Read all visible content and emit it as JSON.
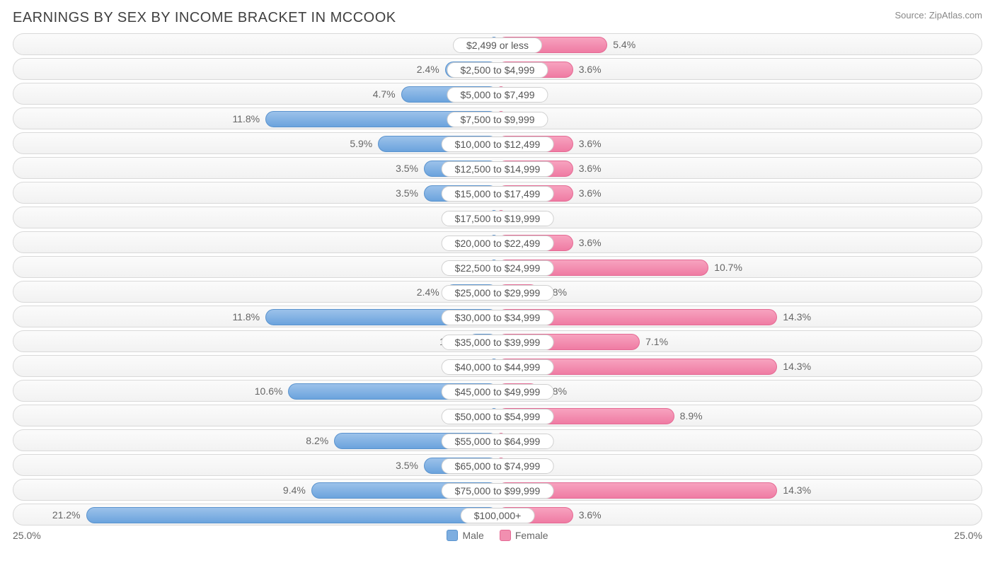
{
  "title": "EARNINGS BY SEX BY INCOME BRACKET IN MCCOOK",
  "source": "Source: ZipAtlas.com",
  "chart": {
    "type": "diverging-bar",
    "axis_max": 25.0,
    "axis_label_left": "25.0%",
    "axis_label_right": "25.0%",
    "bar_base_pct": 1.4,
    "colors": {
      "male_fill": "#7eaee0",
      "male_border": "#5a93ce",
      "female_fill": "#f18fb0",
      "female_border": "#e56a94",
      "row_border": "#d9d9d9",
      "text": "#666666",
      "title_text": "#404040",
      "background": "#ffffff"
    },
    "legend": {
      "male": "Male",
      "female": "Female"
    },
    "rows": [
      {
        "bracket": "$2,499 or less",
        "male": 0.0,
        "female": 5.4
      },
      {
        "bracket": "$2,500 to $4,999",
        "male": 2.4,
        "female": 3.6
      },
      {
        "bracket": "$5,000 to $7,499",
        "male": 4.7,
        "female": 0.0
      },
      {
        "bracket": "$7,500 to $9,999",
        "male": 11.8,
        "female": 0.0
      },
      {
        "bracket": "$10,000 to $12,499",
        "male": 5.9,
        "female": 3.6
      },
      {
        "bracket": "$12,500 to $14,999",
        "male": 3.5,
        "female": 3.6
      },
      {
        "bracket": "$15,000 to $17,499",
        "male": 3.5,
        "female": 3.6
      },
      {
        "bracket": "$17,500 to $19,999",
        "male": 0.0,
        "female": 0.0
      },
      {
        "bracket": "$20,000 to $22,499",
        "male": 0.0,
        "female": 3.6
      },
      {
        "bracket": "$22,500 to $24,999",
        "male": 0.0,
        "female": 10.7
      },
      {
        "bracket": "$25,000 to $29,999",
        "male": 2.4,
        "female": 1.8
      },
      {
        "bracket": "$30,000 to $34,999",
        "male": 11.8,
        "female": 14.3
      },
      {
        "bracket": "$35,000 to $39,999",
        "male": 1.2,
        "female": 7.1
      },
      {
        "bracket": "$40,000 to $44,999",
        "male": 0.0,
        "female": 14.3
      },
      {
        "bracket": "$45,000 to $49,999",
        "male": 10.6,
        "female": 1.8
      },
      {
        "bracket": "$50,000 to $54,999",
        "male": 0.0,
        "female": 8.9
      },
      {
        "bracket": "$55,000 to $64,999",
        "male": 8.2,
        "female": 0.0
      },
      {
        "bracket": "$65,000 to $74,999",
        "male": 3.5,
        "female": 0.0
      },
      {
        "bracket": "$75,000 to $99,999",
        "male": 9.4,
        "female": 14.3
      },
      {
        "bracket": "$100,000+",
        "male": 21.2,
        "female": 3.6
      }
    ]
  }
}
